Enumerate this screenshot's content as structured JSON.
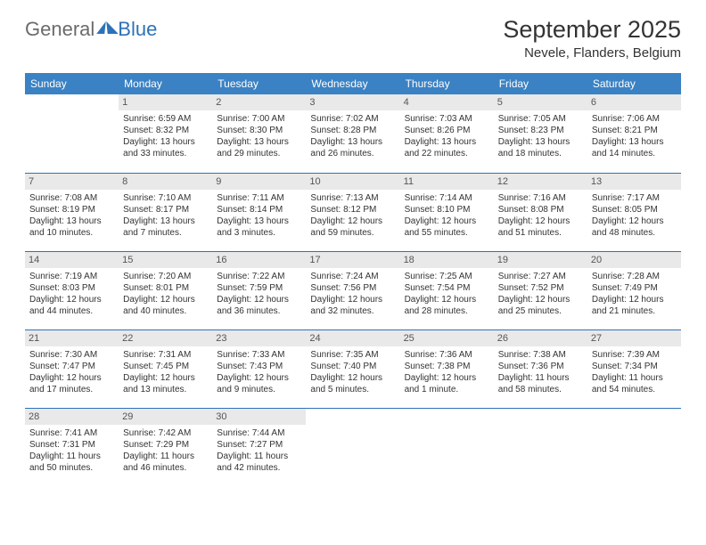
{
  "logo": {
    "general": "General",
    "blue": "Blue"
  },
  "header": {
    "month_year": "September 2025",
    "location": "Nevele, Flanders, Belgium"
  },
  "colors": {
    "header_bg": "#3a82c4",
    "header_text": "#ffffff",
    "daynum_bg": "#e9e9e9",
    "row_divider": "#2d72b8",
    "text": "#333333"
  },
  "dayHeaders": [
    "Sunday",
    "Monday",
    "Tuesday",
    "Wednesday",
    "Thursday",
    "Friday",
    "Saturday"
  ],
  "weeks": [
    [
      {
        "num": "",
        "sunrise": "",
        "sunset": "",
        "daylight": ""
      },
      {
        "num": "1",
        "sunrise": "Sunrise: 6:59 AM",
        "sunset": "Sunset: 8:32 PM",
        "daylight": "Daylight: 13 hours and 33 minutes."
      },
      {
        "num": "2",
        "sunrise": "Sunrise: 7:00 AM",
        "sunset": "Sunset: 8:30 PM",
        "daylight": "Daylight: 13 hours and 29 minutes."
      },
      {
        "num": "3",
        "sunrise": "Sunrise: 7:02 AM",
        "sunset": "Sunset: 8:28 PM",
        "daylight": "Daylight: 13 hours and 26 minutes."
      },
      {
        "num": "4",
        "sunrise": "Sunrise: 7:03 AM",
        "sunset": "Sunset: 8:26 PM",
        "daylight": "Daylight: 13 hours and 22 minutes."
      },
      {
        "num": "5",
        "sunrise": "Sunrise: 7:05 AM",
        "sunset": "Sunset: 8:23 PM",
        "daylight": "Daylight: 13 hours and 18 minutes."
      },
      {
        "num": "6",
        "sunrise": "Sunrise: 7:06 AM",
        "sunset": "Sunset: 8:21 PM",
        "daylight": "Daylight: 13 hours and 14 minutes."
      }
    ],
    [
      {
        "num": "7",
        "sunrise": "Sunrise: 7:08 AM",
        "sunset": "Sunset: 8:19 PM",
        "daylight": "Daylight: 13 hours and 10 minutes."
      },
      {
        "num": "8",
        "sunrise": "Sunrise: 7:10 AM",
        "sunset": "Sunset: 8:17 PM",
        "daylight": "Daylight: 13 hours and 7 minutes."
      },
      {
        "num": "9",
        "sunrise": "Sunrise: 7:11 AM",
        "sunset": "Sunset: 8:14 PM",
        "daylight": "Daylight: 13 hours and 3 minutes."
      },
      {
        "num": "10",
        "sunrise": "Sunrise: 7:13 AM",
        "sunset": "Sunset: 8:12 PM",
        "daylight": "Daylight: 12 hours and 59 minutes."
      },
      {
        "num": "11",
        "sunrise": "Sunrise: 7:14 AM",
        "sunset": "Sunset: 8:10 PM",
        "daylight": "Daylight: 12 hours and 55 minutes."
      },
      {
        "num": "12",
        "sunrise": "Sunrise: 7:16 AM",
        "sunset": "Sunset: 8:08 PM",
        "daylight": "Daylight: 12 hours and 51 minutes."
      },
      {
        "num": "13",
        "sunrise": "Sunrise: 7:17 AM",
        "sunset": "Sunset: 8:05 PM",
        "daylight": "Daylight: 12 hours and 48 minutes."
      }
    ],
    [
      {
        "num": "14",
        "sunrise": "Sunrise: 7:19 AM",
        "sunset": "Sunset: 8:03 PM",
        "daylight": "Daylight: 12 hours and 44 minutes."
      },
      {
        "num": "15",
        "sunrise": "Sunrise: 7:20 AM",
        "sunset": "Sunset: 8:01 PM",
        "daylight": "Daylight: 12 hours and 40 minutes."
      },
      {
        "num": "16",
        "sunrise": "Sunrise: 7:22 AM",
        "sunset": "Sunset: 7:59 PM",
        "daylight": "Daylight: 12 hours and 36 minutes."
      },
      {
        "num": "17",
        "sunrise": "Sunrise: 7:24 AM",
        "sunset": "Sunset: 7:56 PM",
        "daylight": "Daylight: 12 hours and 32 minutes."
      },
      {
        "num": "18",
        "sunrise": "Sunrise: 7:25 AM",
        "sunset": "Sunset: 7:54 PM",
        "daylight": "Daylight: 12 hours and 28 minutes."
      },
      {
        "num": "19",
        "sunrise": "Sunrise: 7:27 AM",
        "sunset": "Sunset: 7:52 PM",
        "daylight": "Daylight: 12 hours and 25 minutes."
      },
      {
        "num": "20",
        "sunrise": "Sunrise: 7:28 AM",
        "sunset": "Sunset: 7:49 PM",
        "daylight": "Daylight: 12 hours and 21 minutes."
      }
    ],
    [
      {
        "num": "21",
        "sunrise": "Sunrise: 7:30 AM",
        "sunset": "Sunset: 7:47 PM",
        "daylight": "Daylight: 12 hours and 17 minutes."
      },
      {
        "num": "22",
        "sunrise": "Sunrise: 7:31 AM",
        "sunset": "Sunset: 7:45 PM",
        "daylight": "Daylight: 12 hours and 13 minutes."
      },
      {
        "num": "23",
        "sunrise": "Sunrise: 7:33 AM",
        "sunset": "Sunset: 7:43 PM",
        "daylight": "Daylight: 12 hours and 9 minutes."
      },
      {
        "num": "24",
        "sunrise": "Sunrise: 7:35 AM",
        "sunset": "Sunset: 7:40 PM",
        "daylight": "Daylight: 12 hours and 5 minutes."
      },
      {
        "num": "25",
        "sunrise": "Sunrise: 7:36 AM",
        "sunset": "Sunset: 7:38 PM",
        "daylight": "Daylight: 12 hours and 1 minute."
      },
      {
        "num": "26",
        "sunrise": "Sunrise: 7:38 AM",
        "sunset": "Sunset: 7:36 PM",
        "daylight": "Daylight: 11 hours and 58 minutes."
      },
      {
        "num": "27",
        "sunrise": "Sunrise: 7:39 AM",
        "sunset": "Sunset: 7:34 PM",
        "daylight": "Daylight: 11 hours and 54 minutes."
      }
    ],
    [
      {
        "num": "28",
        "sunrise": "Sunrise: 7:41 AM",
        "sunset": "Sunset: 7:31 PM",
        "daylight": "Daylight: 11 hours and 50 minutes."
      },
      {
        "num": "29",
        "sunrise": "Sunrise: 7:42 AM",
        "sunset": "Sunset: 7:29 PM",
        "daylight": "Daylight: 11 hours and 46 minutes."
      },
      {
        "num": "30",
        "sunrise": "Sunrise: 7:44 AM",
        "sunset": "Sunset: 7:27 PM",
        "daylight": "Daylight: 11 hours and 42 minutes."
      },
      {
        "num": "",
        "sunrise": "",
        "sunset": "",
        "daylight": ""
      },
      {
        "num": "",
        "sunrise": "",
        "sunset": "",
        "daylight": ""
      },
      {
        "num": "",
        "sunrise": "",
        "sunset": "",
        "daylight": ""
      },
      {
        "num": "",
        "sunrise": "",
        "sunset": "",
        "daylight": ""
      }
    ]
  ]
}
